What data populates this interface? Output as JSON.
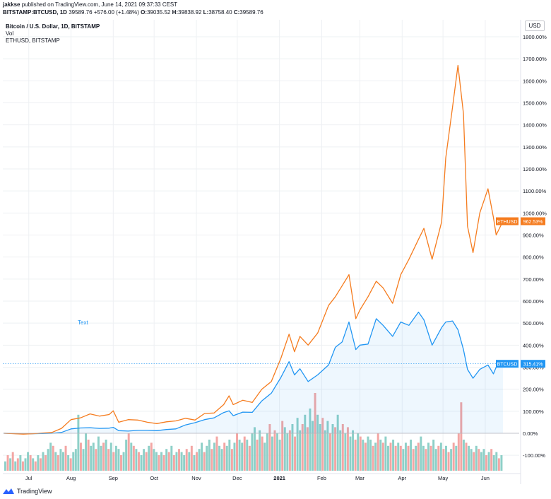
{
  "header": {
    "author": "jakkse",
    "published": "published on TradingView.com, June 14, 2021 09:37:33 CEST",
    "symbol": "BITSTAMP:BTCUSD, 1D",
    "close_text": "39589.76",
    "change_text": "+576.00 (+1.48%)",
    "o_label": "O:",
    "o_value": "39035.52",
    "h_label": "H:",
    "h_value": "39838.92",
    "l_label": "L:",
    "l_value": "38758.40",
    "c_label": "C:",
    "c_value": "39589.76"
  },
  "legend": {
    "main": "Bitcoin / U.S. Dollar, 1D, BITSTAMP",
    "vol": "Vol",
    "compare": "ETHUSD, BITSTAMP"
  },
  "currency_button": "USD",
  "footer": {
    "brand": "TradingView"
  },
  "colors": {
    "btc": "#2196f3",
    "eth": "#f57c1f",
    "vol_up": "#8ed0c8",
    "vol_down": "#f3a6a4",
    "grid": "#eef0f3",
    "axis_text": "#131722",
    "text_annotation": "#2196f3"
  },
  "chart_data": {
    "type": "line",
    "title": "Bitcoin / U.S. Dollar, 1D, BITSTAMP",
    "xlabel": "",
    "ylabel": "",
    "y_unit": "%",
    "ylim": [
      -160,
      1850
    ],
    "y_ticks": [
      -100,
      0,
      100,
      200,
      300,
      400,
      500,
      600,
      700,
      800,
      900,
      1000,
      1100,
      1200,
      1300,
      1400,
      1500,
      1600,
      1700,
      1800
    ],
    "y_tick_labels": [
      "-100.00%",
      "0.00%",
      "100.00%",
      "200.00%",
      "300.00%",
      "400.00%",
      "500.00%",
      "600.00%",
      "700.00%",
      "800.00%",
      "900.00%",
      "1000.00%",
      "1100.00%",
      "1200.00%",
      "1300.00%",
      "1400.00%",
      "1500.00%",
      "1600.00%",
      "1700.00%",
      "1800.00%"
    ],
    "x_ticks": [
      {
        "label": "Jul",
        "date": "2020-07-01"
      },
      {
        "label": "Aug",
        "date": "2020-08-01"
      },
      {
        "label": "Sep",
        "date": "2020-09-01"
      },
      {
        "label": "Oct",
        "date": "2020-10-01"
      },
      {
        "label": "Nov",
        "date": "2020-11-01"
      },
      {
        "label": "Dec",
        "date": "2020-12-01"
      },
      {
        "label": "2021",
        "date": "2021-01-01"
      },
      {
        "label": "Feb",
        "date": "2021-02-01"
      },
      {
        "label": "Mar",
        "date": "2021-03-01"
      },
      {
        "label": "Apr",
        "date": "2021-04-01"
      },
      {
        "label": "May",
        "date": "2021-05-01"
      },
      {
        "label": "Jun",
        "date": "2021-06-01"
      }
    ],
    "grid": true,
    "annotation": "Text",
    "series": [
      {
        "name": "BTCUSD",
        "last_value": 315.41,
        "last_label": "315.41%",
        "points": [
          [
            "2020-06-13",
            0
          ],
          [
            "2020-06-20",
            -1
          ],
          [
            "2020-06-27",
            -3
          ],
          [
            "2020-07-04",
            -2
          ],
          [
            "2020-07-11",
            -1
          ],
          [
            "2020-07-18",
            0
          ],
          [
            "2020-07-25",
            4
          ],
          [
            "2020-08-01",
            20
          ],
          [
            "2020-08-08",
            24
          ],
          [
            "2020-08-15",
            25
          ],
          [
            "2020-08-22",
            22
          ],
          [
            "2020-08-29",
            23
          ],
          [
            "2020-09-01",
            27
          ],
          [
            "2020-09-05",
            12
          ],
          [
            "2020-09-12",
            10
          ],
          [
            "2020-09-19",
            13
          ],
          [
            "2020-09-26",
            13
          ],
          [
            "2020-10-03",
            12
          ],
          [
            "2020-10-10",
            17
          ],
          [
            "2020-10-17",
            20
          ],
          [
            "2020-10-24",
            38
          ],
          [
            "2020-10-31",
            48
          ],
          [
            "2020-11-07",
            62
          ],
          [
            "2020-11-14",
            70
          ],
          [
            "2020-11-21",
            94
          ],
          [
            "2020-11-25",
            102
          ],
          [
            "2020-11-28",
            80
          ],
          [
            "2020-12-05",
            96
          ],
          [
            "2020-12-12",
            95
          ],
          [
            "2020-12-19",
            147
          ],
          [
            "2020-12-26",
            182
          ],
          [
            "2021-01-02",
            253
          ],
          [
            "2021-01-08",
            325
          ],
          [
            "2021-01-12",
            265
          ],
          [
            "2021-01-16",
            293
          ],
          [
            "2021-01-22",
            235
          ],
          [
            "2021-01-29",
            265
          ],
          [
            "2021-02-06",
            310
          ],
          [
            "2021-02-11",
            390
          ],
          [
            "2021-02-16",
            415
          ],
          [
            "2021-02-21",
            505
          ],
          [
            "2021-02-26",
            380
          ],
          [
            "2021-03-01",
            400
          ],
          [
            "2021-03-07",
            405
          ],
          [
            "2021-03-13",
            520
          ],
          [
            "2021-03-18",
            490
          ],
          [
            "2021-03-25",
            440
          ],
          [
            "2021-03-31",
            505
          ],
          [
            "2021-04-06",
            490
          ],
          [
            "2021-04-13",
            550
          ],
          [
            "2021-04-17",
            515
          ],
          [
            "2021-04-23",
            400
          ],
          [
            "2021-04-30",
            480
          ],
          [
            "2021-05-03",
            505
          ],
          [
            "2021-05-08",
            510
          ],
          [
            "2021-05-12",
            470
          ],
          [
            "2021-05-16",
            380
          ],
          [
            "2021-05-19",
            290
          ],
          [
            "2021-05-23",
            250
          ],
          [
            "2021-05-28",
            290
          ],
          [
            "2021-06-03",
            310
          ],
          [
            "2021-06-07",
            270
          ],
          [
            "2021-06-09",
            300
          ],
          [
            "2021-06-14",
            315.41
          ]
        ]
      },
      {
        "name": "ETHUSD",
        "last_value": 962.53,
        "last_label": "962.53%",
        "points": [
          [
            "2020-06-13",
            0
          ],
          [
            "2020-06-20",
            -2
          ],
          [
            "2020-06-27",
            -4
          ],
          [
            "2020-07-04",
            -2
          ],
          [
            "2020-07-11",
            1
          ],
          [
            "2020-07-18",
            4
          ],
          [
            "2020-07-25",
            22
          ],
          [
            "2020-08-01",
            62
          ],
          [
            "2020-08-08",
            70
          ],
          [
            "2020-08-15",
            88
          ],
          [
            "2020-08-22",
            78
          ],
          [
            "2020-08-29",
            85
          ],
          [
            "2020-09-01",
            102
          ],
          [
            "2020-09-05",
            50
          ],
          [
            "2020-09-12",
            62
          ],
          [
            "2020-09-19",
            60
          ],
          [
            "2020-09-26",
            50
          ],
          [
            "2020-10-03",
            44
          ],
          [
            "2020-10-10",
            52
          ],
          [
            "2020-10-17",
            56
          ],
          [
            "2020-10-24",
            68
          ],
          [
            "2020-10-31",
            60
          ],
          [
            "2020-11-07",
            90
          ],
          [
            "2020-11-14",
            92
          ],
          [
            "2020-11-21",
            130
          ],
          [
            "2020-11-25",
            170
          ],
          [
            "2020-11-28",
            130
          ],
          [
            "2020-12-05",
            150
          ],
          [
            "2020-12-12",
            140
          ],
          [
            "2020-12-19",
            200
          ],
          [
            "2020-12-26",
            235
          ],
          [
            "2021-01-02",
            340
          ],
          [
            "2021-01-08",
            450
          ],
          [
            "2021-01-12",
            370
          ],
          [
            "2021-01-16",
            440
          ],
          [
            "2021-01-22",
            400
          ],
          [
            "2021-01-29",
            455
          ],
          [
            "2021-02-06",
            580
          ],
          [
            "2021-02-11",
            620
          ],
          [
            "2021-02-16",
            670
          ],
          [
            "2021-02-21",
            720
          ],
          [
            "2021-02-26",
            520
          ],
          [
            "2021-03-01",
            560
          ],
          [
            "2021-03-07",
            620
          ],
          [
            "2021-03-13",
            690
          ],
          [
            "2021-03-18",
            660
          ],
          [
            "2021-03-25",
            590
          ],
          [
            "2021-03-31",
            720
          ],
          [
            "2021-04-06",
            790
          ],
          [
            "2021-04-13",
            880
          ],
          [
            "2021-04-17",
            930
          ],
          [
            "2021-04-23",
            790
          ],
          [
            "2021-04-30",
            960
          ],
          [
            "2021-05-03",
            1250
          ],
          [
            "2021-05-08",
            1480
          ],
          [
            "2021-05-12",
            1670
          ],
          [
            "2021-05-16",
            1450
          ],
          [
            "2021-05-19",
            940
          ],
          [
            "2021-05-23",
            820
          ],
          [
            "2021-05-28",
            1000
          ],
          [
            "2021-06-03",
            1110
          ],
          [
            "2021-06-07",
            980
          ],
          [
            "2021-06-09",
            900
          ],
          [
            "2021-06-14",
            962.53
          ]
        ]
      }
    ],
    "volume_note": "Vol histogram at bottom (relative heights, green up / red down)",
    "volume": [
      [
        3,
        1
      ],
      [
        5,
        0
      ],
      [
        4,
        1
      ],
      [
        6,
        0
      ],
      [
        3,
        1
      ],
      [
        4,
        0
      ],
      [
        5,
        1
      ],
      [
        3,
        0
      ],
      [
        4,
        1
      ],
      [
        6,
        1
      ],
      [
        5,
        0
      ],
      [
        4,
        1
      ],
      [
        3,
        0
      ],
      [
        5,
        1
      ],
      [
        4,
        0
      ],
      [
        6,
        1
      ],
      [
        5,
        0
      ],
      [
        7,
        1
      ],
      [
        9,
        1
      ],
      [
        8,
        0
      ],
      [
        6,
        1
      ],
      [
        5,
        0
      ],
      [
        7,
        1
      ],
      [
        6,
        1
      ],
      [
        8,
        0
      ],
      [
        5,
        1
      ],
      [
        4,
        0
      ],
      [
        6,
        1
      ],
      [
        7,
        1
      ],
      [
        18,
        1
      ],
      [
        9,
        0
      ],
      [
        7,
        1
      ],
      [
        12,
        1
      ],
      [
        10,
        0
      ],
      [
        8,
        1
      ],
      [
        9,
        1
      ],
      [
        7,
        0
      ],
      [
        11,
        1
      ],
      [
        8,
        1
      ],
      [
        9,
        0
      ],
      [
        10,
        1
      ],
      [
        7,
        0
      ],
      [
        9,
        1
      ],
      [
        6,
        0
      ],
      [
        8,
        1
      ],
      [
        7,
        1
      ],
      [
        5,
        0
      ],
      [
        6,
        1
      ],
      [
        10,
        1
      ],
      [
        12,
        0
      ],
      [
        9,
        1
      ],
      [
        8,
        0
      ],
      [
        7,
        1
      ],
      [
        6,
        0
      ],
      [
        5,
        1
      ],
      [
        7,
        1
      ],
      [
        6,
        0
      ],
      [
        8,
        1
      ],
      [
        9,
        0
      ],
      [
        7,
        1
      ],
      [
        6,
        1
      ],
      [
        5,
        0
      ],
      [
        6,
        1
      ],
      [
        5,
        0
      ],
      [
        7,
        1
      ],
      [
        6,
        0
      ],
      [
        8,
        1
      ],
      [
        5,
        0
      ],
      [
        6,
        1
      ],
      [
        7,
        0
      ],
      [
        6,
        1
      ],
      [
        5,
        1
      ],
      [
        7,
        0
      ],
      [
        6,
        1
      ],
      [
        8,
        0
      ],
      [
        5,
        1
      ],
      [
        6,
        0
      ],
      [
        7,
        1
      ],
      [
        9,
        1
      ],
      [
        6,
        0
      ],
      [
        8,
        1
      ],
      [
        10,
        1
      ],
      [
        7,
        0
      ],
      [
        9,
        1
      ],
      [
        11,
        0
      ],
      [
        8,
        1
      ],
      [
        7,
        1
      ],
      [
        9,
        0
      ],
      [
        8,
        1
      ],
      [
        10,
        1
      ],
      [
        7,
        0
      ],
      [
        9,
        1
      ],
      [
        12,
        0
      ],
      [
        10,
        1
      ],
      [
        9,
        1
      ],
      [
        11,
        0
      ],
      [
        10,
        1
      ],
      [
        8,
        0
      ],
      [
        12,
        1
      ],
      [
        14,
        1
      ],
      [
        10,
        0
      ],
      [
        13,
        1
      ],
      [
        11,
        0
      ],
      [
        9,
        1
      ],
      [
        12,
        1
      ],
      [
        15,
        0
      ],
      [
        11,
        1
      ],
      [
        13,
        0
      ],
      [
        12,
        1
      ],
      [
        10,
        1
      ],
      [
        16,
        0
      ],
      [
        14,
        1
      ],
      [
        12,
        1
      ],
      [
        13,
        0
      ],
      [
        15,
        1
      ],
      [
        11,
        0
      ],
      [
        17,
        1
      ],
      [
        13,
        1
      ],
      [
        15,
        0
      ],
      [
        18,
        1
      ],
      [
        14,
        0
      ],
      [
        20,
        1
      ],
      [
        16,
        1
      ],
      [
        25,
        0
      ],
      [
        18,
        1
      ],
      [
        15,
        1
      ],
      [
        17,
        0
      ],
      [
        13,
        1
      ],
      [
        16,
        1
      ],
      [
        12,
        0
      ],
      [
        15,
        1
      ],
      [
        14,
        0
      ],
      [
        18,
        1
      ],
      [
        13,
        1
      ],
      [
        15,
        0
      ],
      [
        12,
        1
      ],
      [
        14,
        0
      ],
      [
        11,
        1
      ],
      [
        13,
        1
      ],
      [
        10,
        0
      ],
      [
        12,
        1
      ],
      [
        11,
        0
      ],
      [
        10,
        1
      ],
      [
        9,
        0
      ],
      [
        11,
        1
      ],
      [
        10,
        1
      ],
      [
        8,
        0
      ],
      [
        9,
        1
      ],
      [
        12,
        0
      ],
      [
        10,
        1
      ],
      [
        9,
        0
      ],
      [
        11,
        1
      ],
      [
        8,
        1
      ],
      [
        9,
        0
      ],
      [
        10,
        1
      ],
      [
        8,
        0
      ],
      [
        9,
        1
      ],
      [
        8,
        0
      ],
      [
        7,
        1
      ],
      [
        9,
        1
      ],
      [
        8,
        0
      ],
      [
        10,
        1
      ],
      [
        7,
        0
      ],
      [
        8,
        1
      ],
      [
        9,
        0
      ],
      [
        11,
        1
      ],
      [
        8,
        1
      ],
      [
        7,
        0
      ],
      [
        9,
        1
      ],
      [
        8,
        0
      ],
      [
        10,
        1
      ],
      [
        7,
        1
      ],
      [
        8,
        0
      ],
      [
        9,
        1
      ],
      [
        7,
        0
      ],
      [
        8,
        1
      ],
      [
        6,
        0
      ],
      [
        7,
        1
      ],
      [
        9,
        0
      ],
      [
        8,
        1
      ],
      [
        12,
        0
      ],
      [
        22,
        0
      ],
      [
        10,
        1
      ],
      [
        9,
        0
      ],
      [
        8,
        1
      ],
      [
        7,
        1
      ],
      [
        6,
        0
      ],
      [
        8,
        1
      ],
      [
        7,
        0
      ],
      [
        6,
        1
      ],
      [
        7,
        1
      ],
      [
        5,
        0
      ],
      [
        6,
        1
      ],
      [
        7,
        0
      ],
      [
        5,
        1
      ],
      [
        6,
        1
      ],
      [
        4,
        0
      ],
      [
        5,
        1
      ]
    ]
  }
}
